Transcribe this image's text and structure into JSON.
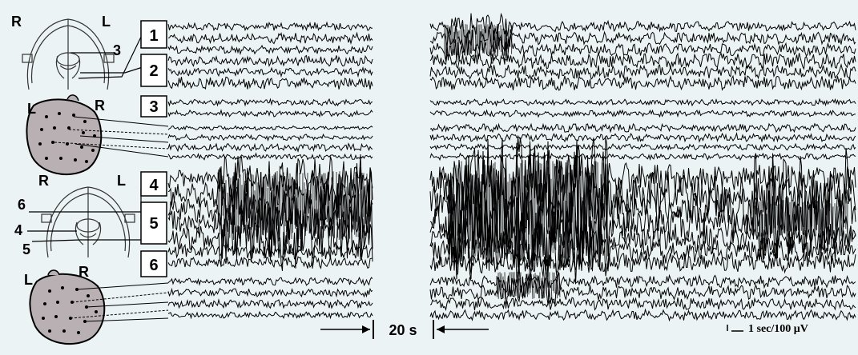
{
  "figure": {
    "background": "#ecf3f4",
    "trace_color": "#000000",
    "icons": [
      "brain-coronal-icon",
      "scalp-electrodes-icon"
    ]
  },
  "panel_top": {
    "schematic": {
      "right_label": "R",
      "left_label": "L",
      "probe_label": "3"
    },
    "scalp": {
      "left_label": "L",
      "right_label": "R"
    },
    "channel_boxes": [
      "1",
      "2",
      "3"
    ]
  },
  "panel_bottom": {
    "schematic": {
      "right_label": "R",
      "left_label": "L",
      "probe_labels": [
        "6",
        "4",
        "5"
      ]
    },
    "scalp": {
      "left_label": "L",
      "right_label": "R"
    },
    "channel_boxes": [
      "4",
      "5",
      "6"
    ]
  },
  "gap_label": "20 s",
  "scale_bar_label": "1 sec/100 μV"
}
